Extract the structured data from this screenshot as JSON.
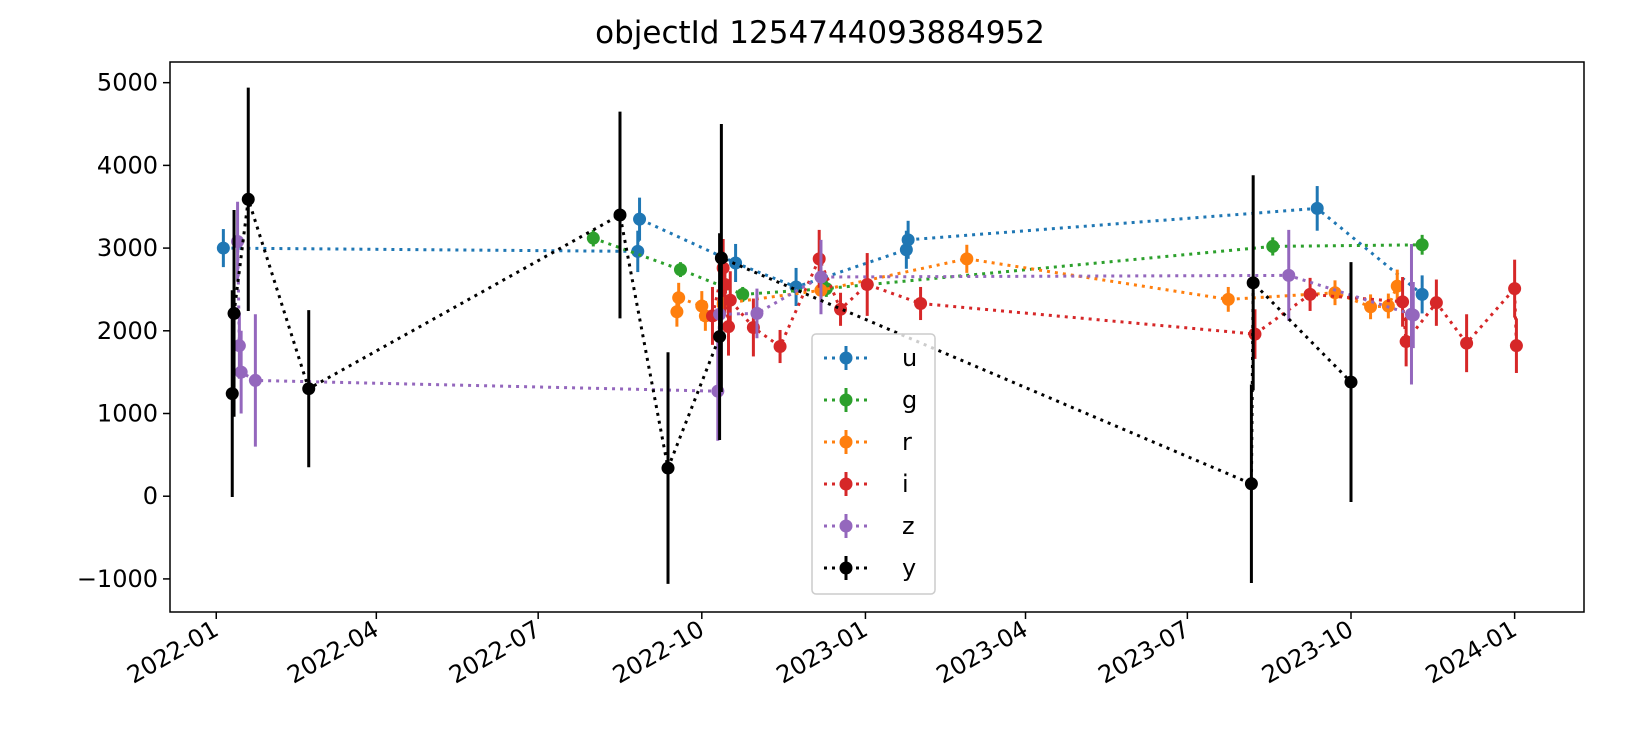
{
  "chart_data": {
    "type": "scatter",
    "title": "objectId 1254744093884952",
    "xlabel": "",
    "ylabel": "",
    "x_is_date": true,
    "xlim": [
      "2021-12-06",
      "2024-02-09"
    ],
    "ylim": [
      -1400,
      5250
    ],
    "x_ticks": [
      "2022-01",
      "2022-04",
      "2022-07",
      "2022-10",
      "2023-01",
      "2023-04",
      "2023-07",
      "2023-10",
      "2024-01"
    ],
    "y_ticks": [
      -1000,
      0,
      1000,
      2000,
      3000,
      4000,
      5000
    ],
    "grid": false,
    "legend_position": "bottom-center",
    "series": [
      {
        "name": "u",
        "color": "#1f77b4",
        "points": [
          {
            "x": "2022-01-05",
            "y": 3000,
            "err": 230
          },
          {
            "x": "2022-08-26",
            "y": 2960,
            "err": 250
          },
          {
            "x": "2022-08-27",
            "y": 3350,
            "err": 260
          },
          {
            "x": "2022-10-20",
            "y": 2820,
            "err": 230
          },
          {
            "x": "2022-11-23",
            "y": 2530,
            "err": 230
          },
          {
            "x": "2023-01-24",
            "y": 2980,
            "err": 230
          },
          {
            "x": "2023-01-25",
            "y": 3100,
            "err": 230
          },
          {
            "x": "2023-09-12",
            "y": 3480,
            "err": 270
          },
          {
            "x": "2023-11-10",
            "y": 2440,
            "err": 230
          }
        ]
      },
      {
        "name": "g",
        "color": "#2ca02c",
        "points": [
          {
            "x": "2022-08-01",
            "y": 3120,
            "err": 100
          },
          {
            "x": "2022-09-19",
            "y": 2740,
            "err": 90
          },
          {
            "x": "2022-10-24",
            "y": 2440,
            "err": 90
          },
          {
            "x": "2022-12-10",
            "y": 2510,
            "err": 100
          },
          {
            "x": "2023-08-18",
            "y": 3020,
            "err": 110
          },
          {
            "x": "2023-11-10",
            "y": 3040,
            "err": 120
          }
        ]
      },
      {
        "name": "r",
        "color": "#ff7f0e",
        "points": [
          {
            "x": "2022-09-17",
            "y": 2230,
            "err": 180
          },
          {
            "x": "2022-09-18",
            "y": 2400,
            "err": 180
          },
          {
            "x": "2022-10-01",
            "y": 2300,
            "err": 180
          },
          {
            "x": "2022-10-03",
            "y": 2180,
            "err": 180
          },
          {
            "x": "2022-10-13",
            "y": 2330,
            "err": 180
          },
          {
            "x": "2022-12-07",
            "y": 2490,
            "err": 150
          },
          {
            "x": "2023-02-27",
            "y": 2870,
            "err": 170
          },
          {
            "x": "2023-07-24",
            "y": 2380,
            "err": 150
          },
          {
            "x": "2023-09-22",
            "y": 2460,
            "err": 150
          },
          {
            "x": "2023-10-12",
            "y": 2290,
            "err": 150
          },
          {
            "x": "2023-10-22",
            "y": 2300,
            "err": 150
          },
          {
            "x": "2023-10-27",
            "y": 2540,
            "err": 200
          }
        ]
      },
      {
        "name": "i",
        "color": "#d62728",
        "points": [
          {
            "x": "2022-10-07",
            "y": 2180,
            "err": 350
          },
          {
            "x": "2022-10-13",
            "y": 2760,
            "err": 350
          },
          {
            "x": "2022-10-14",
            "y": 2560,
            "err": 350
          },
          {
            "x": "2022-10-16",
            "y": 2050,
            "err": 350
          },
          {
            "x": "2022-10-17",
            "y": 2370,
            "err": 350
          },
          {
            "x": "2022-10-30",
            "y": 2040,
            "err": 350
          },
          {
            "x": "2022-11-14",
            "y": 1810,
            "err": 200
          },
          {
            "x": "2022-12-06",
            "y": 2870,
            "err": 350
          },
          {
            "x": "2022-12-18",
            "y": 2260,
            "err": 200
          },
          {
            "x": "2023-01-02",
            "y": 2560,
            "err": 380
          },
          {
            "x": "2023-02-01",
            "y": 2330,
            "err": 200
          },
          {
            "x": "2023-08-08",
            "y": 1960,
            "err": 300
          },
          {
            "x": "2023-09-08",
            "y": 2440,
            "err": 200
          },
          {
            "x": "2023-10-30",
            "y": 2350,
            "err": 300
          },
          {
            "x": "2023-11-01",
            "y": 1870,
            "err": 300
          },
          {
            "x": "2023-11-18",
            "y": 2340,
            "err": 280
          },
          {
            "x": "2023-12-05",
            "y": 1850,
            "err": 350
          },
          {
            "x": "2024-01-01",
            "y": 2510,
            "err": 350
          },
          {
            "x": "2024-01-02",
            "y": 1820,
            "err": 330
          }
        ]
      },
      {
        "name": "z",
        "color": "#9467bd",
        "points": [
          {
            "x": "2022-01-13",
            "y": 3080,
            "err": 480
          },
          {
            "x": "2022-01-14",
            "y": 1820,
            "err": 400
          },
          {
            "x": "2022-01-15",
            "y": 1500,
            "err": 500
          },
          {
            "x": "2022-01-23",
            "y": 1400,
            "err": 800
          },
          {
            "x": "2022-10-10",
            "y": 1270,
            "err": 600
          },
          {
            "x": "2022-10-11",
            "y": 2200,
            "err": 400
          },
          {
            "x": "2022-11-01",
            "y": 2210,
            "err": 300
          },
          {
            "x": "2022-12-07",
            "y": 2650,
            "err": 450
          },
          {
            "x": "2023-08-27",
            "y": 2670,
            "err": 550
          },
          {
            "x": "2023-11-04",
            "y": 2200,
            "err": 850
          },
          {
            "x": "2023-11-05",
            "y": 2190,
            "err": 400
          }
        ]
      },
      {
        "name": "y",
        "color": "#000000",
        "points": [
          {
            "x": "2022-01-10",
            "y": 1240,
            "err": 1250
          },
          {
            "x": "2022-01-11",
            "y": 2210,
            "err": 1250
          },
          {
            "x": "2022-01-19",
            "y": 3590,
            "err": 1350
          },
          {
            "x": "2022-02-22",
            "y": 1300,
            "err": 950
          },
          {
            "x": "2022-08-16",
            "y": 3400,
            "err": 1250
          },
          {
            "x": "2022-09-12",
            "y": 340,
            "err": 1400
          },
          {
            "x": "2022-10-11",
            "y": 1930,
            "err": 1250
          },
          {
            "x": "2022-10-12",
            "y": 2880,
            "err": 1620
          },
          {
            "x": "2023-08-06",
            "y": 150,
            "err": 1200
          },
          {
            "x": "2023-08-07",
            "y": 2580,
            "err": 1300
          },
          {
            "x": "2023-10-01",
            "y": 1380,
            "err": 1450
          }
        ]
      }
    ]
  }
}
